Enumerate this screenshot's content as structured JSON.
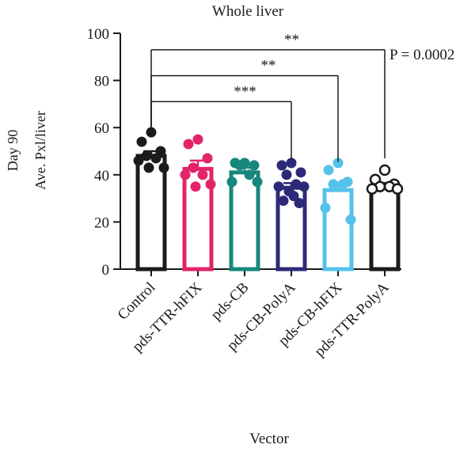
{
  "chart_data": {
    "type": "bar",
    "title": "Whole liver",
    "ylabel_line1": "Day 90",
    "ylabel_line2": "Ave. Pxl/liver",
    "xlabel": "Vector",
    "ylim": [
      0,
      100
    ],
    "yticks": [
      "0",
      "20",
      "40",
      "60",
      "80",
      "100"
    ],
    "categories": [
      "Control",
      "pds-TTR-hFIX",
      "pds-CB",
      "pds-CB-PolyA",
      "pds-CB-hFIX",
      "pds-TTR-PolyA"
    ],
    "values": [
      48,
      42.5,
      41,
      34.5,
      33.5,
      35
    ],
    "sem": [
      2.0,
      3.5,
      2.0,
      2.0,
      3.0,
      1.5
    ],
    "colors": [
      "#1b1b1b",
      "#e2246a",
      "#17877d",
      "#2c2a78",
      "#55c2ea",
      "#1b1b1b"
    ],
    "marker_fill": [
      "filled",
      "filled",
      "filled",
      "filled",
      "filled",
      "open"
    ],
    "points": [
      [
        58,
        54,
        50,
        48,
        47,
        46,
        43,
        43
      ],
      [
        55,
        53,
        47,
        43,
        40,
        40,
        36,
        35
      ],
      [
        45,
        45,
        44,
        44,
        40,
        37,
        37
      ],
      [
        45,
        44,
        41,
        40,
        36,
        35,
        35,
        33,
        31,
        29,
        28
      ],
      [
        45,
        42,
        37,
        36,
        36,
        26,
        21
      ],
      [
        42,
        38,
        36,
        35,
        35,
        34,
        34
      ]
    ],
    "comparisons": [
      {
        "from": "Control",
        "to": "pds-TTR-PolyA",
        "y": 93,
        "label": "**"
      },
      {
        "from": "Control",
        "to": "pds-CB-hFIX",
        "y": 82,
        "label": "**"
      },
      {
        "from": "Control",
        "to": "pds-CB-PolyA",
        "y": 71,
        "label": "***"
      }
    ],
    "p_value_label": "P = 0.0002"
  }
}
